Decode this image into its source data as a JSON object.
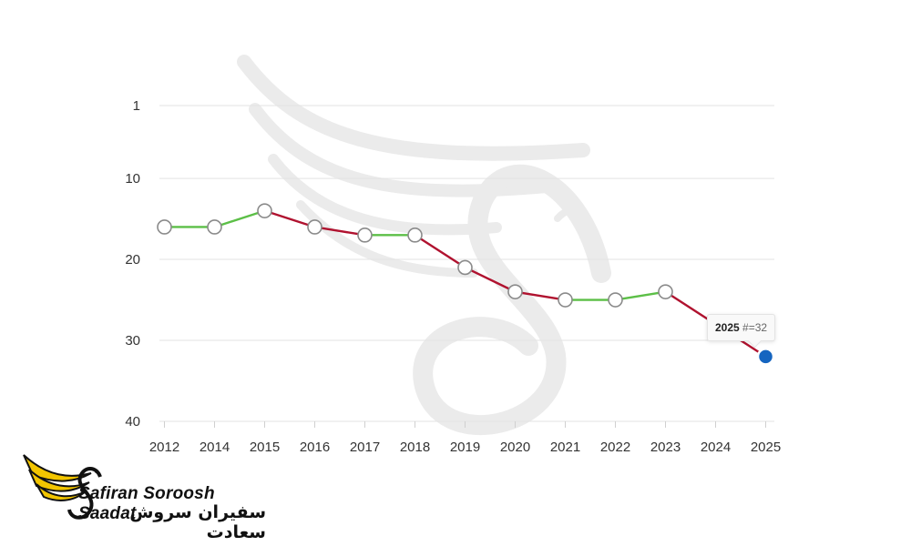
{
  "chart_data": {
    "type": "line",
    "x": [
      "2012",
      "2014",
      "2015",
      "2016",
      "2017",
      "2018",
      "2019",
      "2020",
      "2021",
      "2022",
      "2023",
      "2025"
    ],
    "x_tick_labels": [
      "2012",
      "2014",
      "2015",
      "2016",
      "2017",
      "2018",
      "2019",
      "2020",
      "2021",
      "2022",
      "2023",
      "2024",
      "2025"
    ],
    "series": [
      {
        "values": [
          16,
          16,
          14,
          16,
          17,
          17,
          21,
          24,
          25,
          25,
          24,
          32
        ]
      }
    ],
    "segment_colors": {
      "rise_or_flat": "#5cbf47",
      "decline": "#b0122f"
    },
    "y_ticks": [
      1,
      10,
      20,
      30,
      40
    ],
    "ylim": [
      1,
      40
    ],
    "y_reversed": true,
    "grid": true,
    "title": "",
    "xlabel": "",
    "ylabel": "",
    "highlight": {
      "year": "2025",
      "label": "#=32",
      "color": "#1565c0"
    }
  },
  "tooltip": {
    "year": "2025",
    "label": "#=32"
  },
  "logo": {
    "name_en": "Safiran Soroosh Saadat",
    "name_fa": "سفیران سروش سعادت",
    "colors": {
      "wing": "#f2c500",
      "dark": "#111111"
    }
  }
}
